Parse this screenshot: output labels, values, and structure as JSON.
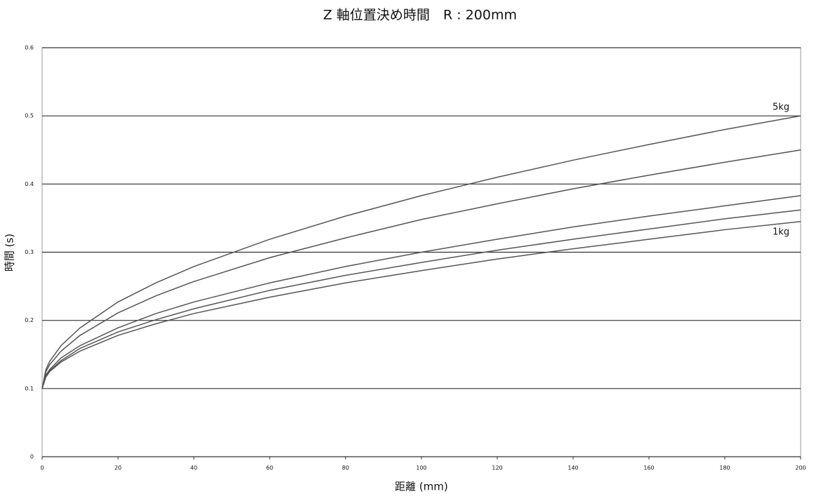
{
  "chart_data": {
    "type": "line",
    "title": "Z 軸位置決め時間　R : 200mm",
    "xlabel": "距離 (mm)",
    "ylabel": "時間 (s)",
    "x": [
      0,
      1,
      2,
      5,
      10,
      20,
      30,
      40,
      60,
      80,
      100,
      120,
      140,
      160,
      180,
      200
    ],
    "series": [
      {
        "name": "5kg",
        "color": "#555555",
        "values": [
          0.1,
          0.128,
          0.14,
          0.163,
          0.189,
          0.227,
          0.255,
          0.279,
          0.319,
          0.353,
          0.383,
          0.41,
          0.435,
          0.458,
          0.48,
          0.5
        ]
      },
      {
        "color": "#555555",
        "values": [
          0.1,
          0.125,
          0.135,
          0.155,
          0.178,
          0.211,
          0.236,
          0.257,
          0.292,
          0.321,
          0.348,
          0.371,
          0.393,
          0.413,
          0.432,
          0.45
        ]
      },
      {
        "color": "#555555",
        "values": [
          0.1,
          0.12,
          0.128,
          0.145,
          0.163,
          0.189,
          0.21,
          0.227,
          0.255,
          0.279,
          0.3,
          0.319,
          0.337,
          0.353,
          0.368,
          0.383
        ]
      },
      {
        "color": "#555555",
        "values": [
          0.1,
          0.119,
          0.126,
          0.141,
          0.159,
          0.183,
          0.201,
          0.217,
          0.244,
          0.266,
          0.285,
          0.303,
          0.319,
          0.334,
          0.349,
          0.362
        ]
      },
      {
        "name": "1kg",
        "color": "#555555",
        "values": [
          0.1,
          0.117,
          0.125,
          0.139,
          0.155,
          0.178,
          0.195,
          0.21,
          0.234,
          0.255,
          0.273,
          0.29,
          0.305,
          0.319,
          0.333,
          0.345
        ]
      }
    ],
    "xlim": [
      0,
      200
    ],
    "xticks": [
      0,
      20,
      40,
      60,
      80,
      100,
      120,
      140,
      160,
      180,
      200
    ],
    "ylim": [
      0,
      0.6
    ],
    "yticks": [
      0,
      0.1,
      0.2,
      0.3,
      0.4,
      0.5,
      0.6
    ],
    "grid": true
  }
}
